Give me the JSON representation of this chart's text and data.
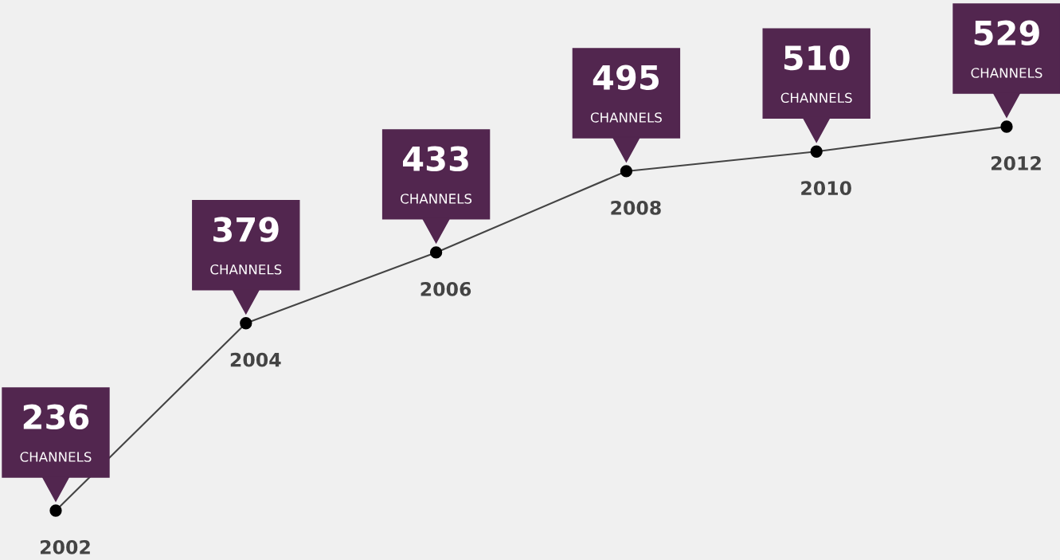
{
  "chart_data": {
    "type": "line",
    "categories": [
      "2002",
      "2004",
      "2006",
      "2008",
      "2010",
      "2012"
    ],
    "series": [
      {
        "color": "#444444",
        "values": [
          236,
          379,
          433,
          495,
          510,
          529
        ],
        "value_labels": [
          "236\nCHANNELS",
          "379\nCHANNELS",
          "433\nCHANNELS",
          "495\nCHANNELS",
          "510\nCHANNELS",
          "529\nCHANNELS"
        ]
      }
    ],
    "marker": "circle"
  }
}
